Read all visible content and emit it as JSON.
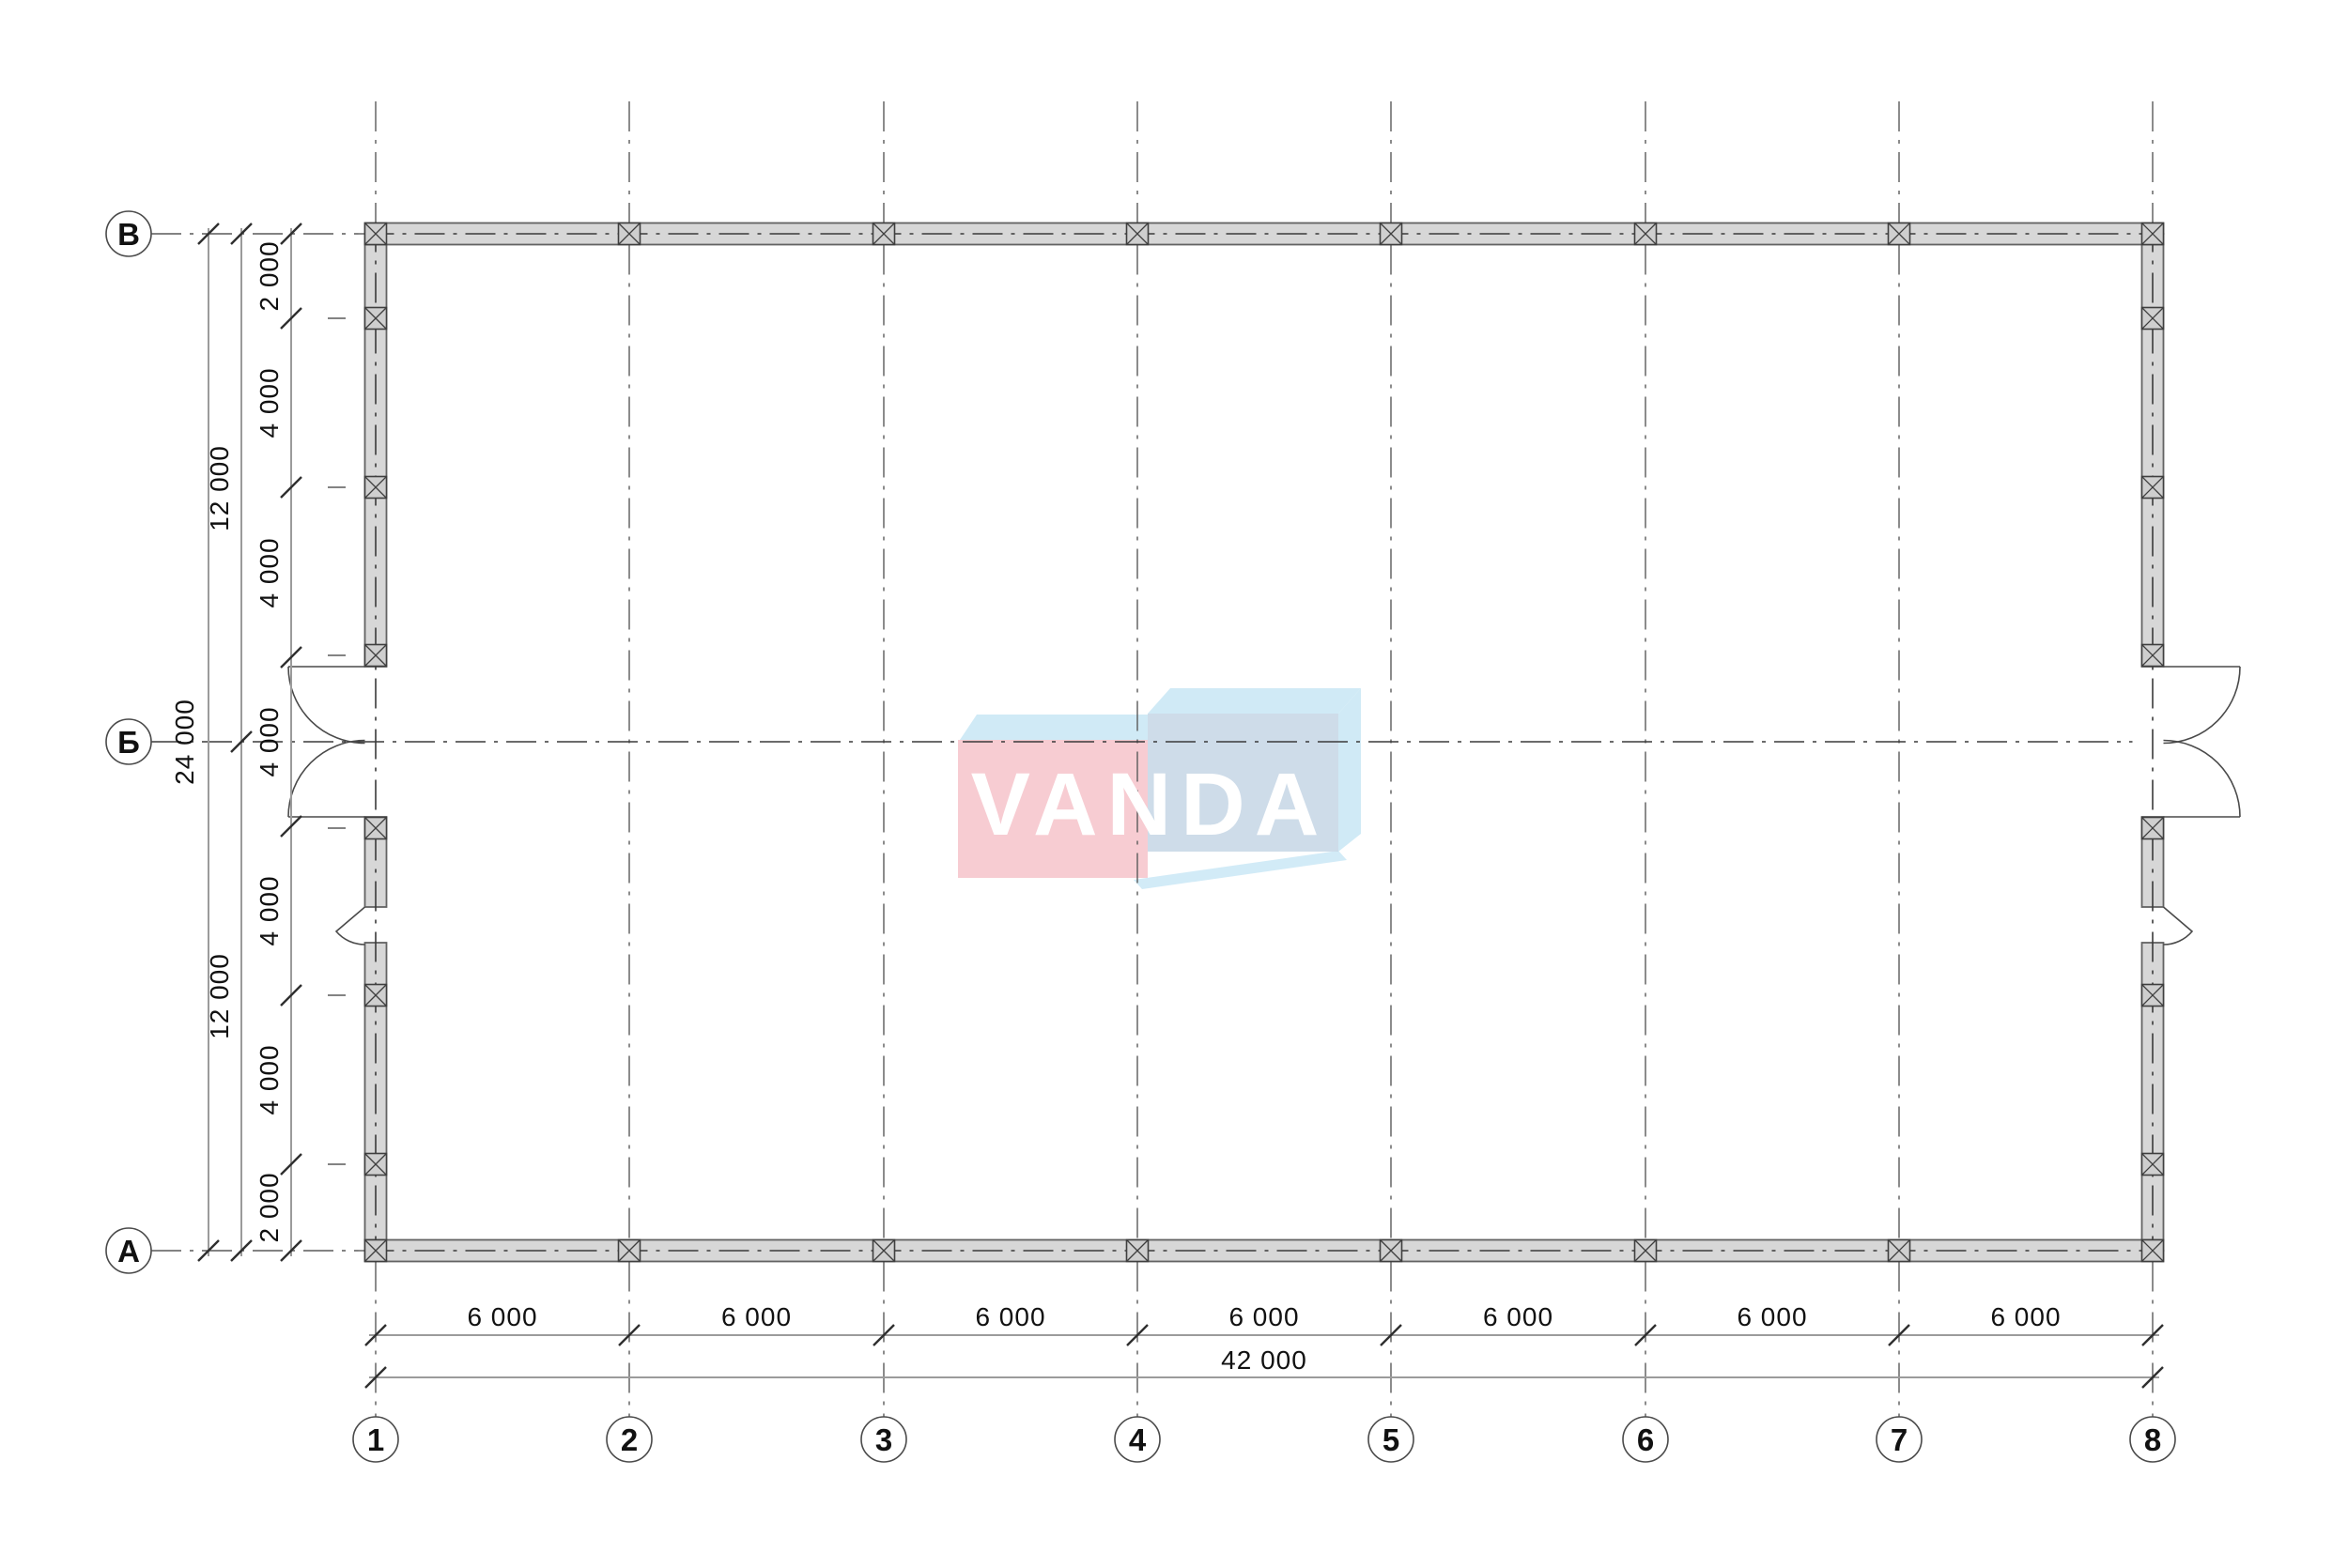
{
  "logo": {
    "text": "VANDA"
  },
  "axes": {
    "rows": [
      {
        "label": "В"
      },
      {
        "label": "Б"
      },
      {
        "label": "А"
      }
    ],
    "cols": [
      {
        "label": "1"
      },
      {
        "label": "2"
      },
      {
        "label": "3"
      },
      {
        "label": "4"
      },
      {
        "label": "5"
      },
      {
        "label": "6"
      },
      {
        "label": "7"
      },
      {
        "label": "8"
      }
    ]
  },
  "dimensions": {
    "left_segments": [
      "2 000",
      "4 000",
      "4 000",
      "4 000",
      "4 000",
      "4 000",
      "2 000"
    ],
    "left_halves": [
      "12 000",
      "12 000"
    ],
    "left_total": "24 000",
    "bottom_segments": [
      "6 000",
      "6 000",
      "6 000",
      "6 000",
      "6 000",
      "6 000",
      "6 000"
    ],
    "bottom_total": "42 000"
  },
  "colors": {
    "wall_fill": "#d7d7d7",
    "wall_edge": "#636363",
    "marker_fill": "#cfcfcf",
    "marker_edge": "#3f3f3f",
    "centerline": "#3a3a3a",
    "grid_line": "#5a5a5a",
    "dim_line": "#9b9b9b",
    "tick": "#2f2f2f",
    "door_line": "#4a4a4a",
    "bubble_stroke": "#4a4a4a",
    "logo_pink": "#f7c9d0",
    "logo_blue": "#cde9f6",
    "logo_face": "#c5d6e5",
    "logo_letters": "#ffffff"
  }
}
